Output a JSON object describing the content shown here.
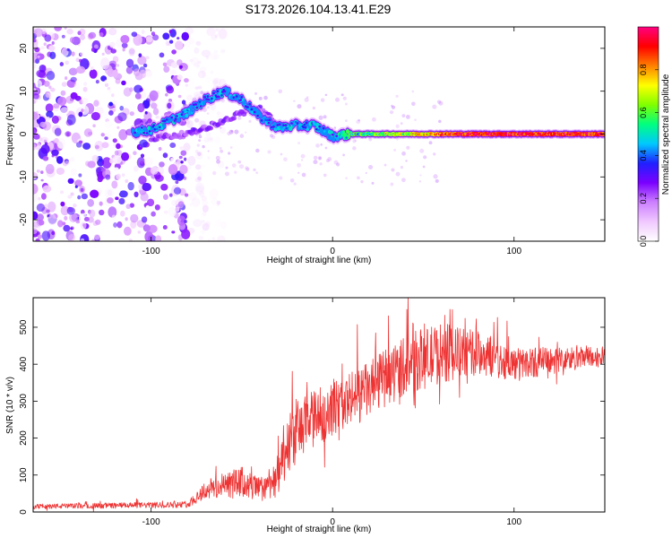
{
  "title": "S173.2026.104.13.41.E29",
  "chart_data": [
    {
      "type": "heatmap",
      "xlabel": "Height of straight line (km)",
      "ylabel": "Frequency (Hz)",
      "xlim": [
        -165,
        150
      ],
      "ylim": [
        -25,
        25
      ],
      "xticks": [
        -100,
        0,
        100
      ],
      "yticks": [
        -20,
        -10,
        0,
        10,
        20
      ],
      "colorbar": {
        "label": "Normalized spectral amplitude",
        "range": [
          0,
          1
        ],
        "ticks": [
          "0.0",
          "0.2",
          "0.4",
          "0.6",
          "0.8"
        ],
        "colormap": [
          "#ffffff",
          "#f0c8ff",
          "#cc80ff",
          "#7a00ff",
          "#2020ff",
          "#00c8ff",
          "#00ff80",
          "#80ff00",
          "#ffff00",
          "#ff8000",
          "#ff0000",
          "#ff0080"
        ]
      },
      "noise_region_x": [
        -165,
        -80
      ],
      "ridge": [
        {
          "x": -110,
          "f": 0.5,
          "amp": 0.25
        },
        {
          "x": -100,
          "f": 1.0,
          "amp": 0.3
        },
        {
          "x": -90,
          "f": 3.0,
          "amp": 0.3
        },
        {
          "x": -80,
          "f": 5.0,
          "amp": 0.3
        },
        {
          "x": -70,
          "f": 8.0,
          "amp": 0.25
        },
        {
          "x": -60,
          "f": 10.0,
          "amp": 0.3
        },
        {
          "x": -50,
          "f": 8.0,
          "amp": 0.25
        },
        {
          "x": -40,
          "f": 4.0,
          "amp": 0.25
        },
        {
          "x": -30,
          "f": 1.5,
          "amp": 0.3
        },
        {
          "x": -20,
          "f": 2.0,
          "amp": 0.3
        },
        {
          "x": -10,
          "f": 2.0,
          "amp": 0.3
        },
        {
          "x": 0,
          "f": -0.5,
          "amp": 0.3
        },
        {
          "x": 10,
          "f": 0.0,
          "amp": 0.5
        },
        {
          "x": 30,
          "f": 0.0,
          "amp": 0.6
        },
        {
          "x": 50,
          "f": 0.0,
          "amp": 0.7
        },
        {
          "x": 70,
          "f": 0.0,
          "amp": 0.9
        },
        {
          "x": 100,
          "f": 0.0,
          "amp": 0.9
        },
        {
          "x": 150,
          "f": 0.0,
          "amp": 0.9
        }
      ],
      "secondary_ridge": [
        {
          "x": -100,
          "f": -1.0
        },
        {
          "x": -80,
          "f": 0.0
        },
        {
          "x": -60,
          "f": 3.0
        },
        {
          "x": -50,
          "f": 5.0
        },
        {
          "x": -40,
          "f": 6.0
        },
        {
          "x": -30,
          "f": 2.0
        }
      ]
    },
    {
      "type": "line",
      "xlabel": "Height of straight line (km)",
      "ylabel": "SNR (10 * v/v)",
      "xlim": [
        -165,
        150
      ],
      "ylim": [
        0,
        580
      ],
      "xticks": [
        -100,
        0,
        100
      ],
      "yticks": [
        0,
        100,
        200,
        300,
        400,
        500
      ],
      "color": "#ee3333",
      "envelope": [
        {
          "x": -165,
          "mean": 15,
          "spread": 12
        },
        {
          "x": -80,
          "mean": 20,
          "spread": 15
        },
        {
          "x": -70,
          "mean": 60,
          "spread": 50
        },
        {
          "x": -50,
          "mean": 80,
          "spread": 80
        },
        {
          "x": -40,
          "mean": 60,
          "spread": 60
        },
        {
          "x": -30,
          "mean": 100,
          "spread": 100
        },
        {
          "x": -20,
          "mean": 220,
          "spread": 160
        },
        {
          "x": 0,
          "mean": 280,
          "spread": 130
        },
        {
          "x": 20,
          "mean": 330,
          "spread": 140
        },
        {
          "x": 40,
          "mean": 400,
          "spread": 150
        },
        {
          "x": 60,
          "mean": 430,
          "spread": 150
        },
        {
          "x": 80,
          "mean": 430,
          "spread": 110
        },
        {
          "x": 100,
          "mean": 400,
          "spread": 80
        },
        {
          "x": 120,
          "mean": 410,
          "spread": 70
        },
        {
          "x": 150,
          "mean": 420,
          "spread": 50
        }
      ]
    }
  ]
}
